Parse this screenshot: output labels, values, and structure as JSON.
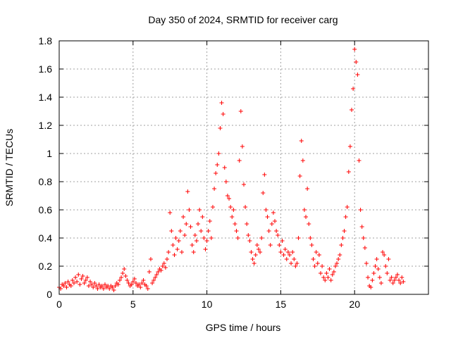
{
  "chart_data": {
    "type": "scatter",
    "title": "Day 350 of 2024, SRMTID for receiver carg",
    "xlabel": "GPS time / hours",
    "ylabel": "SRMTID / TECUs",
    "xlim": [
      0,
      25
    ],
    "ylim": [
      0,
      1.8
    ],
    "xticks": [
      0,
      5,
      10,
      15,
      20
    ],
    "yticks": [
      0,
      0.2,
      0.4,
      0.6,
      0.8,
      1,
      1.2,
      1.4,
      1.6,
      1.8
    ],
    "xtick_labels": [
      "0",
      "5",
      "10",
      "15",
      "20"
    ],
    "ytick_labels": [
      "0",
      "0.2",
      "0.4",
      "0.6",
      "0.8",
      "1",
      "1.2",
      "1.4",
      "1.6",
      "1.8"
    ],
    "marker": "+",
    "color": "#ff0000",
    "grid": true,
    "series": [
      {
        "name": "SRMTID",
        "points": [
          [
            0.0,
            0.05
          ],
          [
            0.1,
            0.04
          ],
          [
            0.2,
            0.07
          ],
          [
            0.3,
            0.06
          ],
          [
            0.4,
            0.08
          ],
          [
            0.5,
            0.05
          ],
          [
            0.6,
            0.09
          ],
          [
            0.7,
            0.07
          ],
          [
            0.8,
            0.06
          ],
          [
            0.9,
            0.1
          ],
          [
            1.0,
            0.08
          ],
          [
            1.1,
            0.12
          ],
          [
            1.2,
            0.09
          ],
          [
            1.3,
            0.14
          ],
          [
            1.4,
            0.07
          ],
          [
            1.5,
            0.11
          ],
          [
            1.6,
            0.13
          ],
          [
            1.7,
            0.08
          ],
          [
            1.8,
            0.1
          ],
          [
            1.9,
            0.12
          ],
          [
            2.0,
            0.06
          ],
          [
            2.1,
            0.09
          ],
          [
            2.2,
            0.07
          ],
          [
            2.3,
            0.05
          ],
          [
            2.4,
            0.08
          ],
          [
            2.5,
            0.06
          ],
          [
            2.6,
            0.04
          ],
          [
            2.7,
            0.07
          ],
          [
            2.8,
            0.05
          ],
          [
            2.9,
            0.06
          ],
          [
            3.0,
            0.04
          ],
          [
            3.1,
            0.07
          ],
          [
            3.2,
            0.05
          ],
          [
            3.3,
            0.06
          ],
          [
            3.4,
            0.04
          ],
          [
            3.5,
            0.06
          ],
          [
            3.6,
            0.05
          ],
          [
            3.7,
            0.03
          ],
          [
            3.8,
            0.06
          ],
          [
            3.9,
            0.08
          ],
          [
            4.0,
            0.07
          ],
          [
            4.1,
            0.1
          ],
          [
            4.2,
            0.12
          ],
          [
            4.3,
            0.15
          ],
          [
            4.4,
            0.18
          ],
          [
            4.5,
            0.13
          ],
          [
            4.6,
            0.1
          ],
          [
            4.7,
            0.08
          ],
          [
            4.8,
            0.06
          ],
          [
            4.9,
            0.07
          ],
          [
            5.0,
            0.09
          ],
          [
            5.1,
            0.11
          ],
          [
            5.2,
            0.08
          ],
          [
            5.3,
            0.06
          ],
          [
            5.4,
            0.07
          ],
          [
            5.5,
            0.05
          ],
          [
            5.6,
            0.08
          ],
          [
            5.7,
            0.1
          ],
          [
            5.8,
            0.07
          ],
          [
            5.9,
            0.06
          ],
          [
            6.0,
            0.04
          ],
          [
            6.1,
            0.16
          ],
          [
            6.2,
            0.25
          ],
          [
            6.3,
            0.08
          ],
          [
            6.4,
            0.1
          ],
          [
            6.5,
            0.12
          ],
          [
            6.6,
            0.14
          ],
          [
            6.7,
            0.16
          ],
          [
            6.8,
            0.18
          ],
          [
            6.9,
            0.17
          ],
          [
            7.0,
            0.2
          ],
          [
            7.1,
            0.22
          ],
          [
            7.2,
            0.19
          ],
          [
            7.3,
            0.25
          ],
          [
            7.4,
            0.3
          ],
          [
            7.5,
            0.58
          ],
          [
            7.6,
            0.45
          ],
          [
            7.7,
            0.35
          ],
          [
            7.8,
            0.28
          ],
          [
            7.9,
            0.4
          ],
          [
            8.0,
            0.32
          ],
          [
            8.1,
            0.38
          ],
          [
            8.2,
            0.45
          ],
          [
            8.3,
            0.3
          ],
          [
            8.4,
            0.55
          ],
          [
            8.5,
            0.42
          ],
          [
            8.6,
            0.5
          ],
          [
            8.7,
            0.73
          ],
          [
            8.8,
            0.6
          ],
          [
            8.9,
            0.48
          ],
          [
            9.0,
            0.35
          ],
          [
            9.1,
            0.3
          ],
          [
            9.2,
            0.42
          ],
          [
            9.3,
            0.38
          ],
          [
            9.4,
            0.5
          ],
          [
            9.5,
            0.6
          ],
          [
            9.6,
            0.45
          ],
          [
            9.7,
            0.55
          ],
          [
            9.8,
            0.4
          ],
          [
            9.9,
            0.32
          ],
          [
            10.0,
            0.38
          ],
          [
            10.1,
            0.45
          ],
          [
            10.2,
            0.52
          ],
          [
            10.3,
            0.4
          ],
          [
            10.4,
            0.62
          ],
          [
            10.5,
            0.75
          ],
          [
            10.6,
            0.86
          ],
          [
            10.7,
            0.92
          ],
          [
            10.8,
            1.0
          ],
          [
            10.9,
            1.18
          ],
          [
            11.0,
            1.36
          ],
          [
            11.1,
            1.28
          ],
          [
            11.2,
            0.9
          ],
          [
            11.3,
            0.8
          ],
          [
            11.4,
            0.7
          ],
          [
            11.5,
            0.68
          ],
          [
            11.6,
            0.62
          ],
          [
            11.7,
            0.55
          ],
          [
            11.8,
            0.6
          ],
          [
            11.9,
            0.5
          ],
          [
            12.0,
            0.45
          ],
          [
            12.1,
            0.4
          ],
          [
            12.2,
            0.95
          ],
          [
            12.3,
            1.3
          ],
          [
            12.4,
            1.05
          ],
          [
            12.5,
            0.78
          ],
          [
            12.6,
            0.62
          ],
          [
            12.7,
            0.5
          ],
          [
            12.8,
            0.42
          ],
          [
            12.9,
            0.38
          ],
          [
            13.0,
            0.3
          ],
          [
            13.1,
            0.25
          ],
          [
            13.2,
            0.22
          ],
          [
            13.3,
            0.28
          ],
          [
            13.4,
            0.35
          ],
          [
            13.5,
            0.32
          ],
          [
            13.6,
            0.3
          ],
          [
            13.7,
            0.4
          ],
          [
            13.8,
            0.72
          ],
          [
            13.9,
            0.85
          ],
          [
            14.0,
            0.6
          ],
          [
            14.1,
            0.55
          ],
          [
            14.2,
            0.45
          ],
          [
            14.3,
            0.35
          ],
          [
            14.4,
            0.5
          ],
          [
            14.5,
            0.58
          ],
          [
            14.6,
            0.52
          ],
          [
            14.7,
            0.45
          ],
          [
            14.8,
            0.42
          ],
          [
            14.9,
            0.35
          ],
          [
            15.0,
            0.3
          ],
          [
            15.1,
            0.38
          ],
          [
            15.2,
            0.28
          ],
          [
            15.3,
            0.32
          ],
          [
            15.4,
            0.25
          ],
          [
            15.5,
            0.3
          ],
          [
            15.6,
            0.28
          ],
          [
            15.7,
            0.22
          ],
          [
            15.8,
            0.3
          ],
          [
            15.9,
            0.25
          ],
          [
            16.0,
            0.2
          ],
          [
            16.1,
            0.22
          ],
          [
            16.2,
            0.4
          ],
          [
            16.3,
            0.84
          ],
          [
            16.4,
            1.09
          ],
          [
            16.5,
            0.95
          ],
          [
            16.6,
            0.6
          ],
          [
            16.7,
            0.55
          ],
          [
            16.8,
            0.75
          ],
          [
            16.9,
            0.5
          ],
          [
            17.0,
            0.4
          ],
          [
            17.1,
            0.35
          ],
          [
            17.2,
            0.25
          ],
          [
            17.3,
            0.2
          ],
          [
            17.4,
            0.3
          ],
          [
            17.5,
            0.22
          ],
          [
            17.6,
            0.28
          ],
          [
            17.7,
            0.15
          ],
          [
            17.8,
            0.2
          ],
          [
            17.9,
            0.12
          ],
          [
            18.0,
            0.1
          ],
          [
            18.1,
            0.15
          ],
          [
            18.2,
            0.12
          ],
          [
            18.3,
            0.18
          ],
          [
            18.4,
            0.1
          ],
          [
            18.5,
            0.14
          ],
          [
            18.6,
            0.16
          ],
          [
            18.7,
            0.2
          ],
          [
            18.8,
            0.22
          ],
          [
            18.9,
            0.25
          ],
          [
            19.0,
            0.28
          ],
          [
            19.1,
            0.35
          ],
          [
            19.2,
            0.4
          ],
          [
            19.3,
            0.45
          ],
          [
            19.4,
            0.55
          ],
          [
            19.5,
            0.62
          ],
          [
            19.6,
            0.87
          ],
          [
            19.7,
            1.05
          ],
          [
            19.8,
            1.31
          ],
          [
            19.9,
            1.46
          ],
          [
            20.0,
            1.74
          ],
          [
            20.1,
            1.65
          ],
          [
            20.2,
            1.56
          ],
          [
            20.3,
            0.95
          ],
          [
            20.4,
            0.6
          ],
          [
            20.5,
            0.48
          ],
          [
            20.6,
            0.4
          ],
          [
            20.7,
            0.33
          ],
          [
            20.8,
            0.22
          ],
          [
            20.9,
            0.12
          ],
          [
            21.0,
            0.06
          ],
          [
            21.1,
            0.05
          ],
          [
            21.2,
            0.1
          ],
          [
            21.3,
            0.15
          ],
          [
            21.4,
            0.2
          ],
          [
            21.5,
            0.25
          ],
          [
            21.6,
            0.18
          ],
          [
            21.7,
            0.12
          ],
          [
            21.8,
            0.08
          ],
          [
            21.9,
            0.3
          ],
          [
            22.0,
            0.28
          ],
          [
            22.1,
            0.2
          ],
          [
            22.2,
            0.15
          ],
          [
            22.3,
            0.25
          ],
          [
            22.4,
            0.1
          ],
          [
            22.5,
            0.12
          ],
          [
            22.6,
            0.08
          ],
          [
            22.7,
            0.1
          ],
          [
            22.8,
            0.12
          ],
          [
            22.9,
            0.14
          ],
          [
            23.0,
            0.1
          ],
          [
            23.1,
            0.08
          ],
          [
            23.2,
            0.12
          ],
          [
            23.3,
            0.09
          ]
        ]
      }
    ]
  }
}
